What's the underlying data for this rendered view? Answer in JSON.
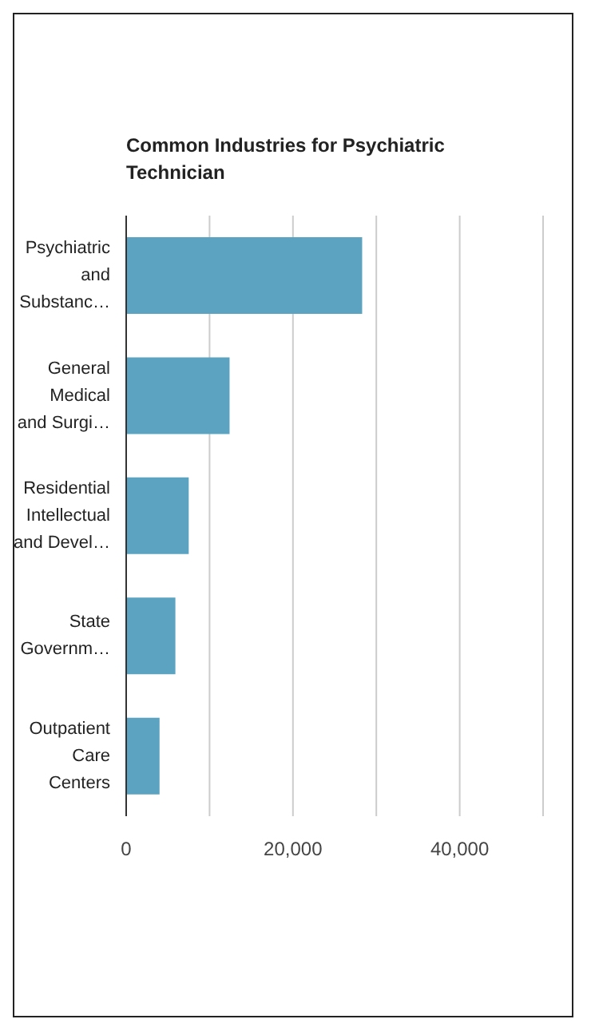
{
  "chart_data": {
    "type": "bar",
    "orientation": "horizontal",
    "title": "Common Industries for Psychiatric Technician",
    "categories": [
      "Psychiatric and Substanc…",
      "General Medical and Surgi…",
      "Residential Intellectual and Devel…",
      "State Governm…",
      "Outpatient Care Centers"
    ],
    "values": [
      28300,
      12400,
      7500,
      5900,
      4000
    ],
    "color": "#5ba3c0",
    "xlim": [
      0,
      50000
    ],
    "xticks": [
      0,
      {
        "value": 10000,
        "label": null
      },
      {
        "value": 20000,
        "label": "20,000"
      },
      {
        "value": 30000,
        "label": null
      },
      {
        "value": 40000,
        "label": "40,000"
      }
    ],
    "grid": "x"
  }
}
